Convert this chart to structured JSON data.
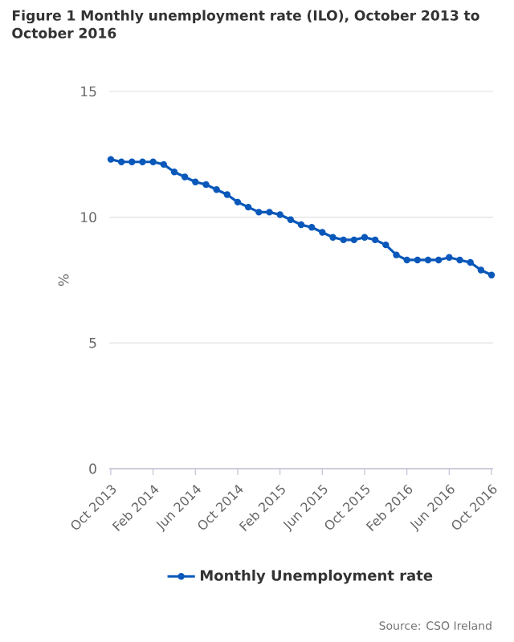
{
  "chart_data": {
    "type": "line",
    "title": "Figure 1 Monthly unemployment rate (ILO), October 2013 to October 2016",
    "ylabel": "%",
    "categories": [
      "Oct 2013",
      null,
      null,
      null,
      "Feb 2014",
      null,
      null,
      null,
      "Jun 2014",
      null,
      null,
      null,
      "Oct 2014",
      null,
      null,
      null,
      "Feb 2015",
      null,
      null,
      null,
      "Jun 2015",
      null,
      null,
      null,
      "Oct 2015",
      null,
      null,
      null,
      "Feb 2016",
      null,
      null,
      null,
      "Jun 2016",
      null,
      null,
      null,
      "Oct 2016"
    ],
    "series": [
      {
        "name": "Monthly Unemployment rate",
        "color": "#0a58ba",
        "values": [
          12.3,
          12.2,
          12.2,
          12.2,
          12.2,
          12.1,
          11.8,
          11.6,
          11.4,
          11.3,
          11.1,
          10.9,
          10.6,
          10.4,
          10.2,
          10.2,
          10.1,
          9.9,
          9.7,
          9.6,
          9.4,
          9.2,
          9.1,
          9.1,
          9.2,
          9.1,
          8.9,
          8.5,
          8.3,
          8.3,
          8.3,
          8.3,
          8.4,
          8.3,
          8.2,
          7.9,
          7.7
        ]
      }
    ],
    "ylim": [
      0,
      15
    ],
    "yticks": [
      0,
      5,
      10,
      15
    ],
    "grid": "y",
    "legend": "bottom",
    "marker": "circle",
    "line_style": "solid",
    "annotations": [
      "Source: CSO Ireland"
    ]
  }
}
